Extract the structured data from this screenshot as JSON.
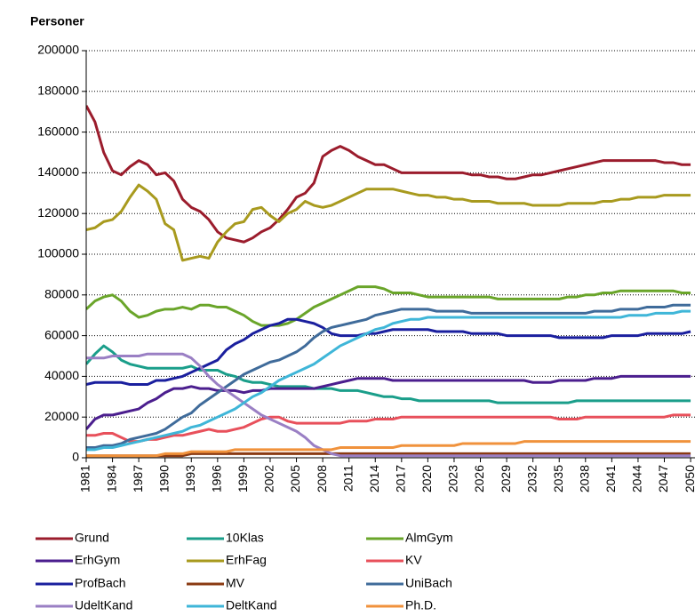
{
  "chart_data": {
    "type": "line",
    "y_label": "Personer",
    "legend": "bottom",
    "grid": true,
    "x": [
      1981,
      1982,
      1983,
      1984,
      1985,
      1986,
      1987,
      1988,
      1989,
      1990,
      1991,
      1992,
      1993,
      1994,
      1995,
      1996,
      1997,
      1998,
      1999,
      2000,
      2001,
      2002,
      2003,
      2004,
      2005,
      2006,
      2007,
      2008,
      2009,
      2010,
      2011,
      2012,
      2013,
      2014,
      2015,
      2016,
      2017,
      2018,
      2019,
      2020,
      2021,
      2022,
      2023,
      2024,
      2025,
      2026,
      2027,
      2028,
      2029,
      2030,
      2031,
      2032,
      2033,
      2034,
      2035,
      2036,
      2037,
      2038,
      2039,
      2040,
      2041,
      2042,
      2043,
      2044,
      2045,
      2046,
      2047,
      2048,
      2049,
      2050
    ],
    "xlim": [
      1981,
      2050.5
    ],
    "xticks": [
      1981,
      1984,
      1987,
      1990,
      1993,
      1996,
      1999,
      2002,
      2005,
      2008,
      2011,
      2014,
      2017,
      2020,
      2023,
      2026,
      2029,
      2032,
      2035,
      2038,
      2041,
      2044,
      2047,
      2050
    ],
    "ylim": [
      0,
      200000
    ],
    "yticks": [
      0,
      20000,
      40000,
      60000,
      80000,
      100000,
      120000,
      140000,
      160000,
      180000,
      200000
    ],
    "series": [
      {
        "name": "Grund",
        "color": "#9b1c2c",
        "values": [
          173000,
          165000,
          150000,
          141000,
          139000,
          143000,
          146000,
          144000,
          139000,
          140000,
          136000,
          127000,
          123000,
          121000,
          117000,
          111000,
          108000,
          107000,
          106000,
          108000,
          111000,
          113000,
          117000,
          122000,
          128000,
          130000,
          135000,
          148000,
          151000,
          153000,
          151000,
          148000,
          146000,
          144000,
          144000,
          142000,
          140000,
          140000,
          140000,
          140000,
          140000,
          140000,
          140000,
          140000,
          139000,
          139000,
          138000,
          138000,
          137000,
          137000,
          138000,
          139000,
          139000,
          140000,
          141000,
          142000,
          143000,
          144000,
          145000,
          146000,
          146000,
          146000,
          146000,
          146000,
          146000,
          146000,
          145000,
          145000,
          144000,
          144000
        ]
      },
      {
        "name": "10Klas",
        "color": "#1a9e8a",
        "values": [
          46000,
          51000,
          55000,
          52000,
          48000,
          46000,
          45000,
          44000,
          44000,
          44000,
          44000,
          44000,
          45000,
          43000,
          43000,
          43000,
          41000,
          40000,
          38000,
          37000,
          37000,
          36000,
          35000,
          35000,
          35000,
          35000,
          34000,
          34000,
          34000,
          33000,
          33000,
          33000,
          32000,
          31000,
          30000,
          30000,
          29000,
          29000,
          28000,
          28000,
          28000,
          28000,
          28000,
          28000,
          28000,
          28000,
          28000,
          27000,
          27000,
          27000,
          27000,
          27000,
          27000,
          27000,
          27000,
          27000,
          28000,
          28000,
          28000,
          28000,
          28000,
          28000,
          28000,
          28000,
          28000,
          28000,
          28000,
          28000,
          28000,
          28000
        ]
      },
      {
        "name": "AlmGym",
        "color": "#6aa52a",
        "values": [
          73000,
          77000,
          79000,
          80000,
          77000,
          72000,
          69000,
          70000,
          72000,
          73000,
          73000,
          74000,
          73000,
          75000,
          75000,
          74000,
          74000,
          72000,
          70000,
          67000,
          65000,
          65000,
          65000,
          66000,
          68000,
          71000,
          74000,
          76000,
          78000,
          80000,
          82000,
          84000,
          84000,
          84000,
          83000,
          81000,
          81000,
          81000,
          80000,
          79000,
          79000,
          79000,
          79000,
          79000,
          79000,
          79000,
          79000,
          78000,
          78000,
          78000,
          78000,
          78000,
          78000,
          78000,
          78000,
          79000,
          79000,
          80000,
          80000,
          81000,
          81000,
          82000,
          82000,
          82000,
          82000,
          82000,
          82000,
          82000,
          81000,
          81000
        ]
      },
      {
        "name": "ErhGym",
        "color": "#4b1e8e",
        "values": [
          14000,
          19000,
          21000,
          21000,
          22000,
          23000,
          24000,
          27000,
          29000,
          32000,
          34000,
          34000,
          35000,
          34000,
          34000,
          33000,
          33000,
          33000,
          32000,
          33000,
          33000,
          34000,
          34000,
          34000,
          34000,
          34000,
          34000,
          35000,
          36000,
          37000,
          38000,
          39000,
          39000,
          39000,
          39000,
          38000,
          38000,
          38000,
          38000,
          38000,
          38000,
          38000,
          38000,
          38000,
          38000,
          38000,
          38000,
          38000,
          38000,
          38000,
          38000,
          37000,
          37000,
          37000,
          38000,
          38000,
          38000,
          38000,
          39000,
          39000,
          39000,
          40000,
          40000,
          40000,
          40000,
          40000,
          40000,
          40000,
          40000,
          40000
        ]
      },
      {
        "name": "ErhFag",
        "color": "#a89a1e",
        "values": [
          112000,
          113000,
          116000,
          117000,
          121000,
          128000,
          134000,
          131000,
          127000,
          115000,
          112000,
          97000,
          98000,
          99000,
          98000,
          106000,
          111000,
          115000,
          116000,
          122000,
          123000,
          119000,
          116000,
          120000,
          122000,
          126000,
          124000,
          123000,
          124000,
          126000,
          128000,
          130000,
          132000,
          132000,
          132000,
          132000,
          131000,
          130000,
          129000,
          129000,
          128000,
          128000,
          127000,
          127000,
          126000,
          126000,
          126000,
          125000,
          125000,
          125000,
          125000,
          124000,
          124000,
          124000,
          124000,
          125000,
          125000,
          125000,
          125000,
          126000,
          126000,
          127000,
          127000,
          128000,
          128000,
          128000,
          129000,
          129000,
          129000,
          129000
        ]
      },
      {
        "name": "KV",
        "color": "#e8505b",
        "values": [
          11000,
          11000,
          12000,
          12000,
          10000,
          8000,
          8000,
          9000,
          9000,
          10000,
          11000,
          11000,
          12000,
          13000,
          14000,
          13000,
          13000,
          14000,
          15000,
          17000,
          19000,
          20000,
          20000,
          18000,
          17000,
          17000,
          17000,
          17000,
          17000,
          17000,
          18000,
          18000,
          18000,
          19000,
          19000,
          19000,
          20000,
          20000,
          20000,
          20000,
          20000,
          20000,
          20000,
          20000,
          20000,
          20000,
          20000,
          20000,
          20000,
          20000,
          20000,
          20000,
          20000,
          20000,
          19000,
          19000,
          19000,
          20000,
          20000,
          20000,
          20000,
          20000,
          20000,
          20000,
          20000,
          20000,
          20000,
          21000,
          21000,
          21000
        ]
      },
      {
        "name": "ProfBach",
        "color": "#1a1f9e",
        "values": [
          36000,
          37000,
          37000,
          37000,
          37000,
          36000,
          36000,
          36000,
          38000,
          38000,
          39000,
          40000,
          42000,
          44000,
          46000,
          48000,
          53000,
          56000,
          58000,
          61000,
          63000,
          65000,
          66000,
          68000,
          68000,
          67000,
          66000,
          64000,
          61000,
          60000,
          60000,
          60000,
          61000,
          61000,
          62000,
          63000,
          63000,
          63000,
          63000,
          63000,
          62000,
          62000,
          62000,
          62000,
          61000,
          61000,
          61000,
          61000,
          60000,
          60000,
          60000,
          60000,
          60000,
          60000,
          59000,
          59000,
          59000,
          59000,
          59000,
          59000,
          60000,
          60000,
          60000,
          60000,
          61000,
          61000,
          61000,
          61000,
          61000,
          62000
        ]
      },
      {
        "name": "MV",
        "color": "#8a3a12",
        "values": [
          1000,
          1000,
          1000,
          1000,
          1000,
          1000,
          1000,
          1000,
          1000,
          1000,
          1000,
          1000,
          2000,
          2000,
          2000,
          2000,
          2000,
          2000,
          2000,
          2000,
          2000,
          2000,
          2000,
          2000,
          2000,
          2000,
          2000,
          2000,
          2000,
          2000,
          2000,
          2000,
          2000,
          2000,
          2000,
          2000,
          2000,
          2000,
          2000,
          2000,
          2000,
          2000,
          2000,
          2000,
          2000,
          2000,
          2000,
          2000,
          2000,
          2000,
          2000,
          2000,
          2000,
          2000,
          2000,
          2000,
          2000,
          2000,
          2000,
          2000,
          2000,
          2000,
          2000,
          2000,
          2000,
          2000,
          2000,
          2000,
          2000,
          2000
        ]
      },
      {
        "name": "UniBach",
        "color": "#3f6b9a",
        "values": [
          5000,
          5000,
          6000,
          6000,
          7000,
          9000,
          10000,
          11000,
          12000,
          14000,
          17000,
          20000,
          22000,
          26000,
          29000,
          32000,
          35000,
          38000,
          41000,
          43000,
          45000,
          47000,
          48000,
          50000,
          52000,
          55000,
          59000,
          62000,
          64000,
          65000,
          66000,
          67000,
          68000,
          70000,
          71000,
          72000,
          73000,
          73000,
          73000,
          73000,
          72000,
          72000,
          72000,
          72000,
          71000,
          71000,
          71000,
          71000,
          71000,
          71000,
          71000,
          71000,
          71000,
          71000,
          71000,
          71000,
          71000,
          71000,
          72000,
          72000,
          72000,
          73000,
          73000,
          73000,
          74000,
          74000,
          74000,
          75000,
          75000,
          75000
        ]
      },
      {
        "name": "UdeltKand",
        "color": "#9a7fc4",
        "values": [
          49000,
          49000,
          49000,
          50000,
          50000,
          50000,
          50000,
          51000,
          51000,
          51000,
          51000,
          51000,
          49000,
          45000,
          40000,
          36000,
          33000,
          30000,
          27000,
          24000,
          21000,
          19000,
          17000,
          15000,
          13000,
          10000,
          6000,
          4000,
          2000,
          1000,
          1000,
          1000,
          1000,
          1000,
          1000,
          1000,
          1000,
          1000,
          1000,
          1000,
          1000,
          1000,
          1000,
          1000,
          1000,
          1000,
          1000,
          1000,
          1000,
          1000,
          1000,
          1000,
          1000,
          1000,
          1000,
          1000,
          1000,
          1000,
          1000,
          1000,
          1000,
          1000,
          1000,
          1000,
          1000,
          1000,
          1000,
          1000,
          1000,
          1000
        ]
      },
      {
        "name": "DeltKand",
        "color": "#3fb6d8",
        "values": [
          4000,
          4000,
          5000,
          5000,
          6000,
          7000,
          8000,
          9000,
          10000,
          11000,
          12000,
          13000,
          15000,
          16000,
          18000,
          20000,
          22000,
          24000,
          27000,
          30000,
          32000,
          35000,
          38000,
          40000,
          42000,
          44000,
          46000,
          49000,
          52000,
          55000,
          57000,
          59000,
          61000,
          63000,
          64000,
          66000,
          67000,
          68000,
          68000,
          69000,
          69000,
          69000,
          69000,
          69000,
          69000,
          69000,
          69000,
          69000,
          69000,
          69000,
          69000,
          69000,
          69000,
          69000,
          69000,
          69000,
          69000,
          69000,
          69000,
          69000,
          69000,
          69000,
          70000,
          70000,
          70000,
          71000,
          71000,
          71000,
          72000,
          72000
        ]
      },
      {
        "name": "Ph.D.",
        "color": "#f0923c",
        "values": [
          1000,
          1000,
          1000,
          1000,
          1000,
          1000,
          1000,
          1000,
          1000,
          2000,
          2000,
          2000,
          3000,
          3000,
          3000,
          3000,
          3000,
          4000,
          4000,
          4000,
          4000,
          4000,
          4000,
          4000,
          4000,
          4000,
          4000,
          4000,
          4000,
          5000,
          5000,
          5000,
          5000,
          5000,
          5000,
          5000,
          6000,
          6000,
          6000,
          6000,
          6000,
          6000,
          6000,
          7000,
          7000,
          7000,
          7000,
          7000,
          7000,
          7000,
          8000,
          8000,
          8000,
          8000,
          8000,
          8000,
          8000,
          8000,
          8000,
          8000,
          8000,
          8000,
          8000,
          8000,
          8000,
          8000,
          8000,
          8000,
          8000,
          8000
        ]
      }
    ]
  }
}
